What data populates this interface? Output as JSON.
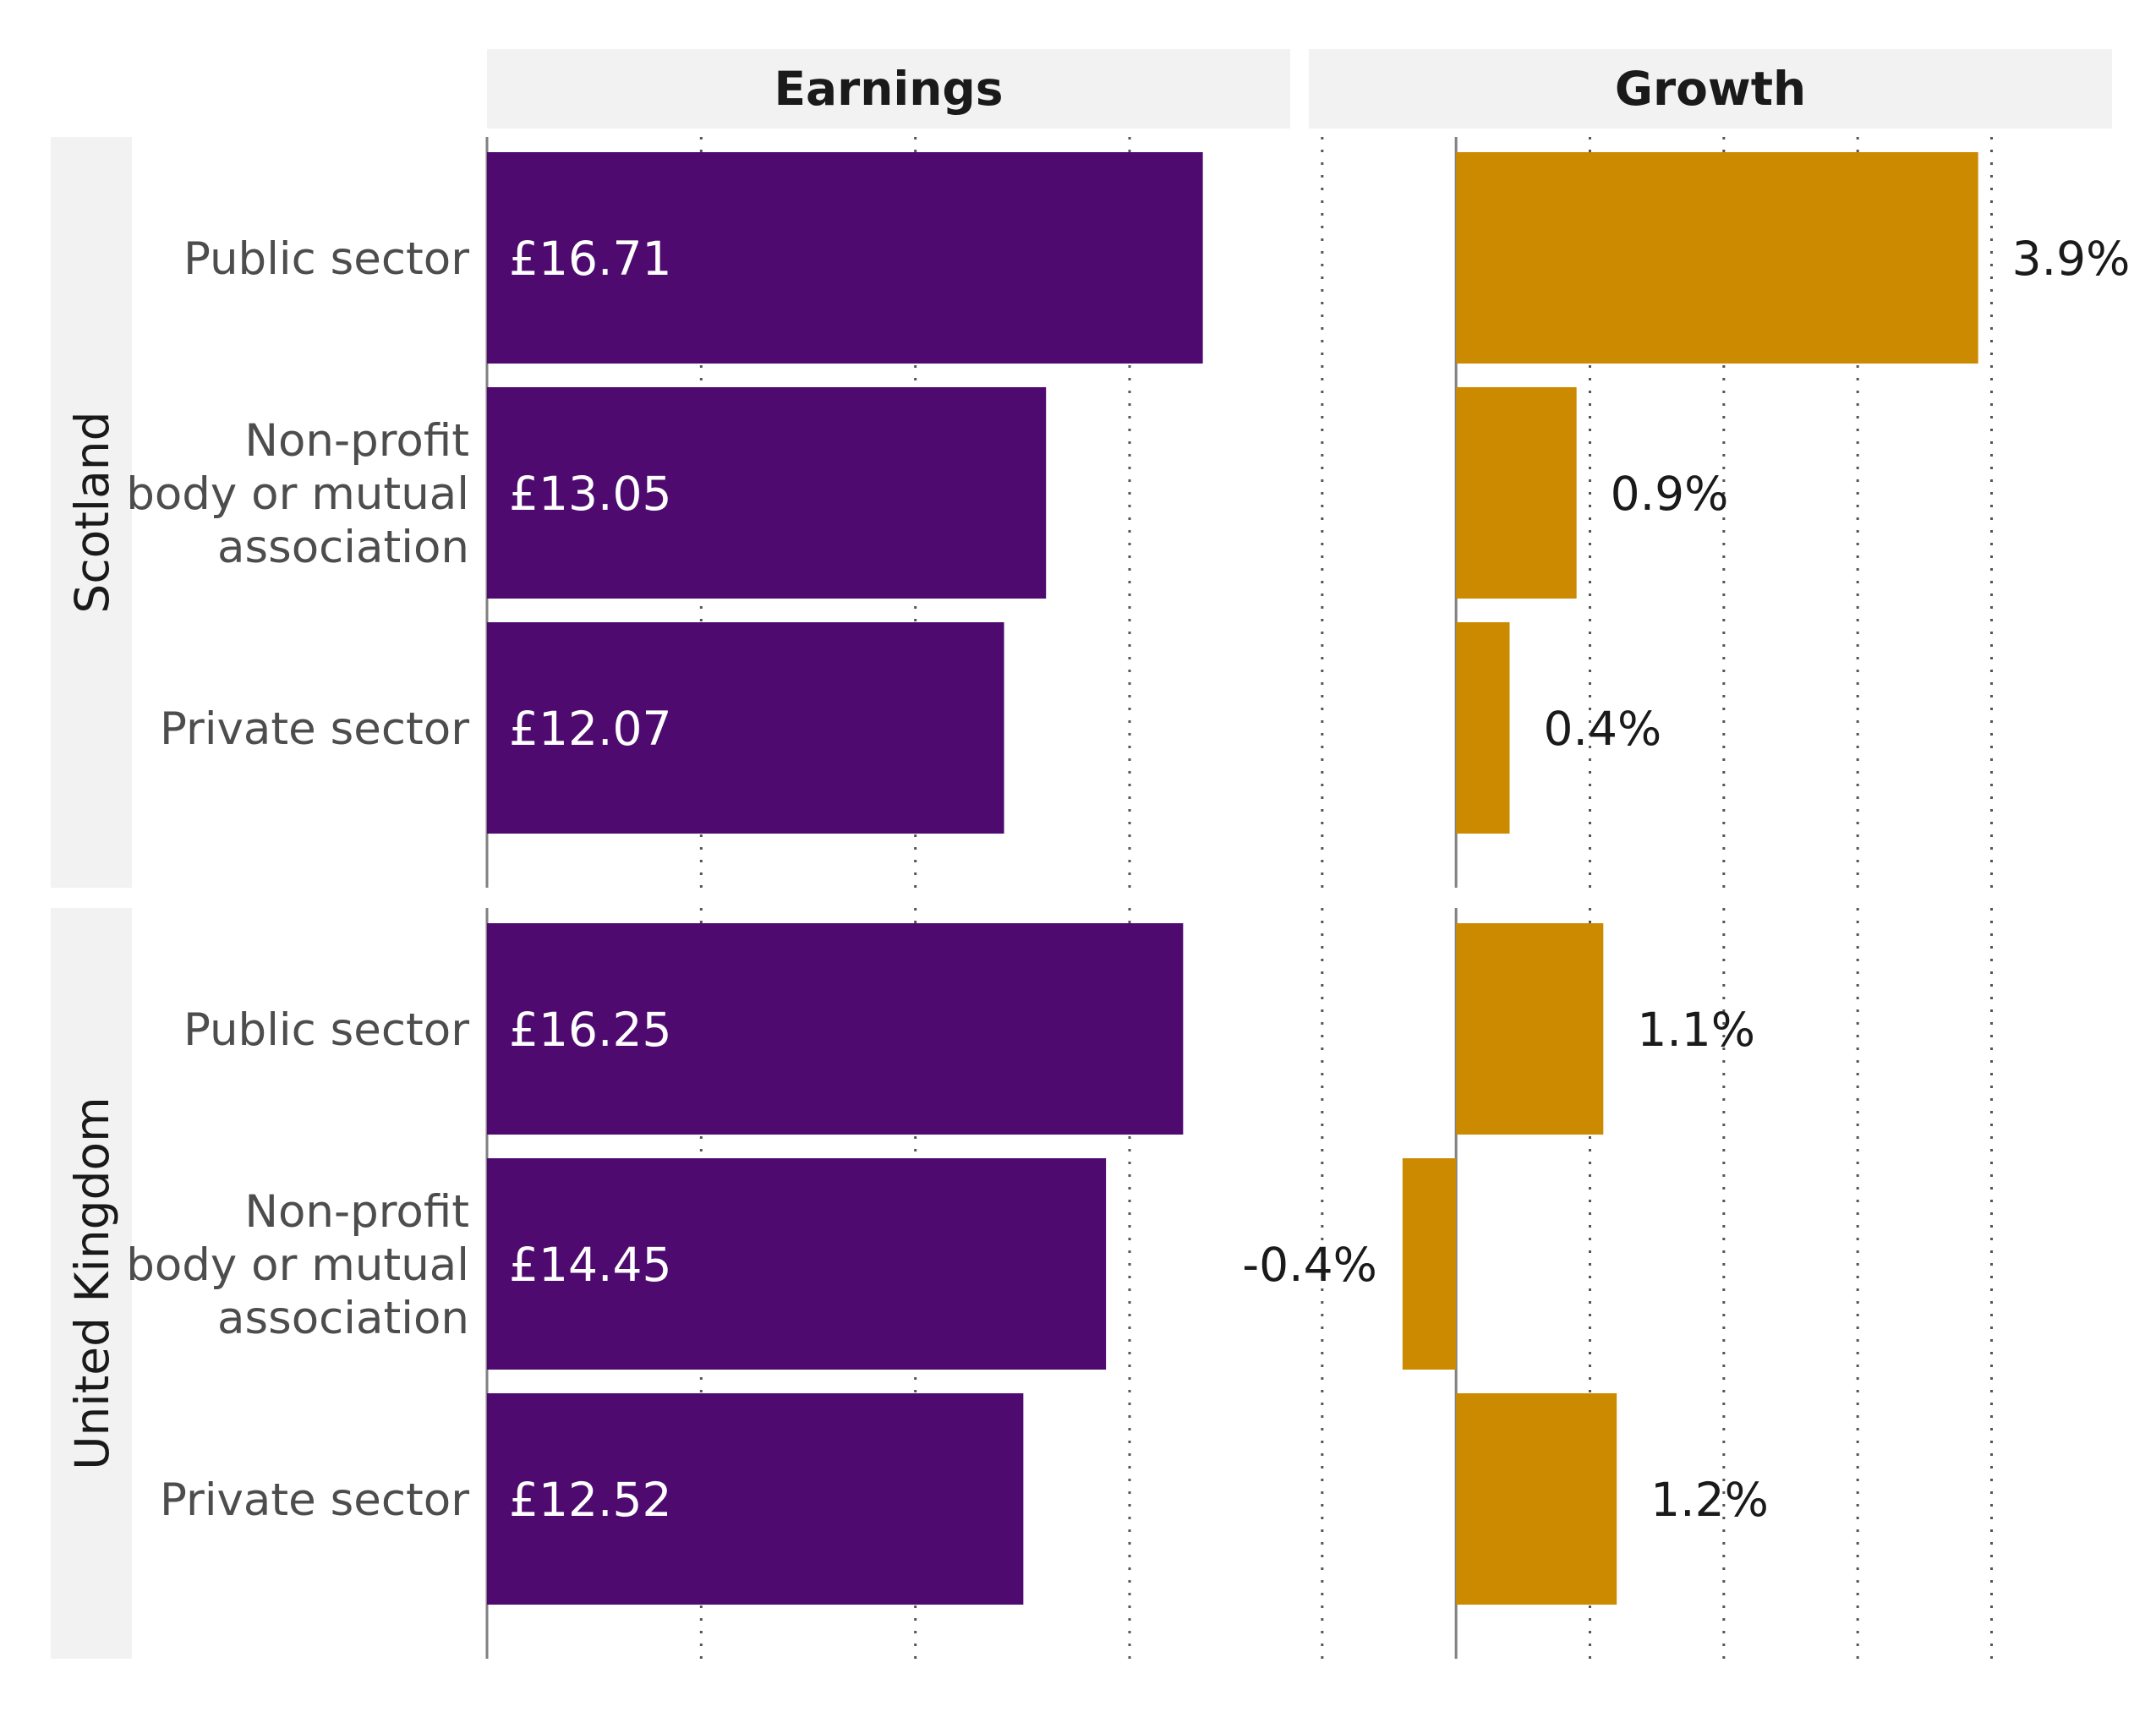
{
  "chart_data": {
    "type": "bar",
    "orientation": "horizontal",
    "facets": [
      "Earnings",
      "Growth"
    ],
    "groups": [
      "Scotland",
      "United Kingdom"
    ],
    "categories": [
      "Public sector",
      "Non-profit body or mutual association",
      "Private sector"
    ],
    "category_lines": [
      [
        "Public sector"
      ],
      [
        "Non-profit",
        "body or mutual",
        "association"
      ],
      [
        "Private sector"
      ]
    ],
    "series": [
      {
        "name": "Earnings",
        "unit": "£ per hour",
        "color": "#4f0a70",
        "xlim": [
          0,
          18.75
        ],
        "gridlines": [
          5,
          10,
          15
        ],
        "values": {
          "Scotland": [
            16.71,
            13.05,
            12.07
          ],
          "United Kingdom": [
            16.25,
            14.45,
            12.52
          ]
        },
        "labels": {
          "Scotland": [
            "£16.71",
            "£13.05",
            "£12.07"
          ],
          "United Kingdom": [
            "£16.25",
            "£14.45",
            "£12.52"
          ]
        }
      },
      {
        "name": "Growth",
        "unit": "%",
        "color": "#cc8a00",
        "xlim": [
          -1.1,
          4.9
        ],
        "gridlines": [
          -1,
          1,
          2,
          3,
          4
        ],
        "values": {
          "Scotland": [
            3.9,
            0.9,
            0.4
          ],
          "United Kingdom": [
            1.1,
            -0.4,
            1.2
          ]
        },
        "labels": {
          "Scotland": [
            "3.9%",
            "0.9%",
            "0.4%"
          ],
          "United Kingdom": [
            "1.1%",
            "-0.4%",
            "1.2%"
          ]
        }
      }
    ]
  }
}
